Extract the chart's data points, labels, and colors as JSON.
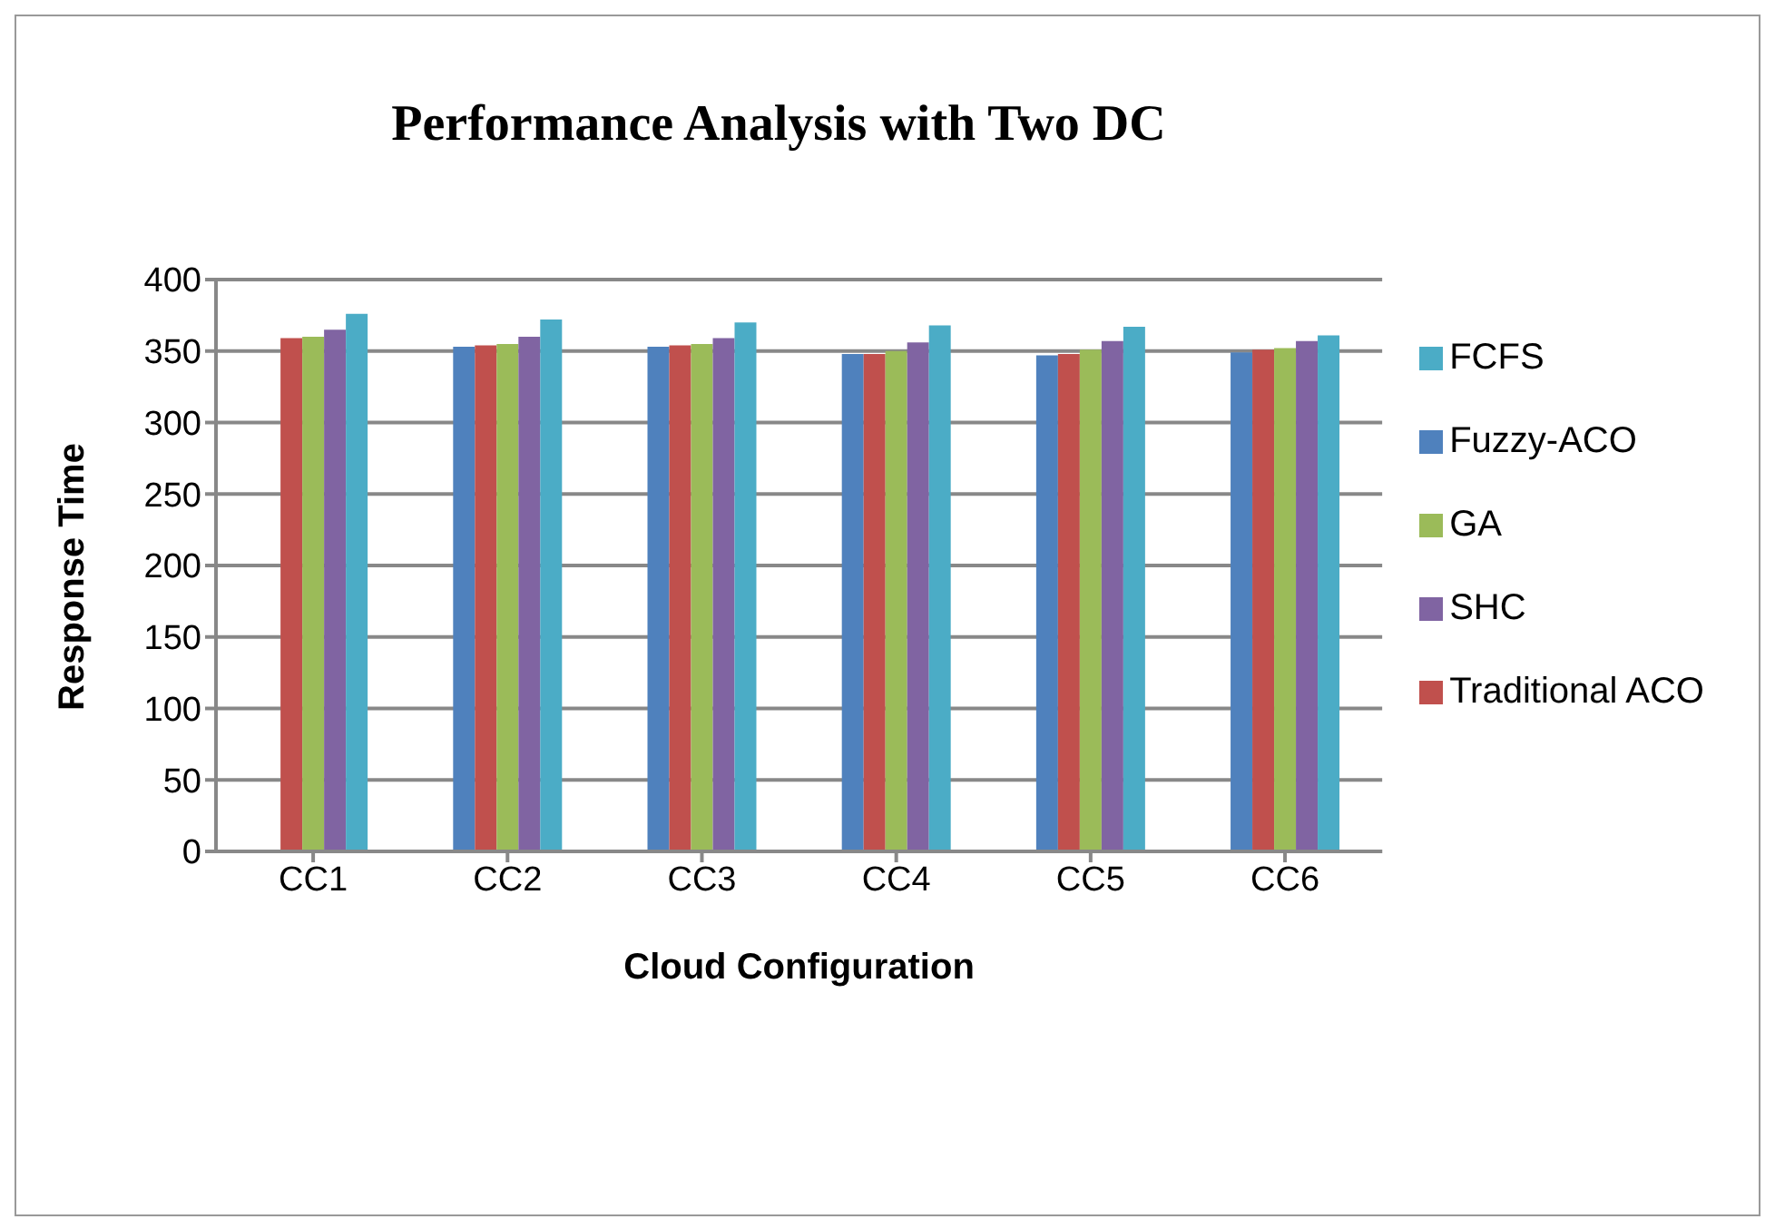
{
  "chart_data": {
    "type": "bar",
    "title": "Performance Analysis with Two DC",
    "xlabel": "Cloud Configuration",
    "ylabel": "Response Time",
    "categories": [
      "CC1",
      "CC2",
      "CC3",
      "CC4",
      "CC5",
      "CC6"
    ],
    "series": [
      {
        "name": "Fuzzy-ACO",
        "color": "#4f81bd",
        "values": [
          null,
          353,
          353,
          348,
          347,
          349
        ]
      },
      {
        "name": "Traditional ACO",
        "color": "#c0504d",
        "values": [
          359,
          354,
          354,
          348,
          348,
          351
        ]
      },
      {
        "name": "GA",
        "color": "#9bbb59",
        "values": [
          360,
          355,
          355,
          350,
          351,
          352
        ]
      },
      {
        "name": "SHC",
        "color": "#8064a2",
        "values": [
          365,
          360,
          359,
          356,
          357,
          357
        ]
      },
      {
        "name": "FCFS",
        "color": "#4bacc6",
        "values": [
          376,
          372,
          370,
          368,
          367,
          361
        ]
      }
    ],
    "ylim": [
      0,
      400
    ],
    "yticks": [
      0,
      50,
      100,
      150,
      200,
      250,
      300,
      350,
      400
    ],
    "grid": "y",
    "legend": "right"
  }
}
